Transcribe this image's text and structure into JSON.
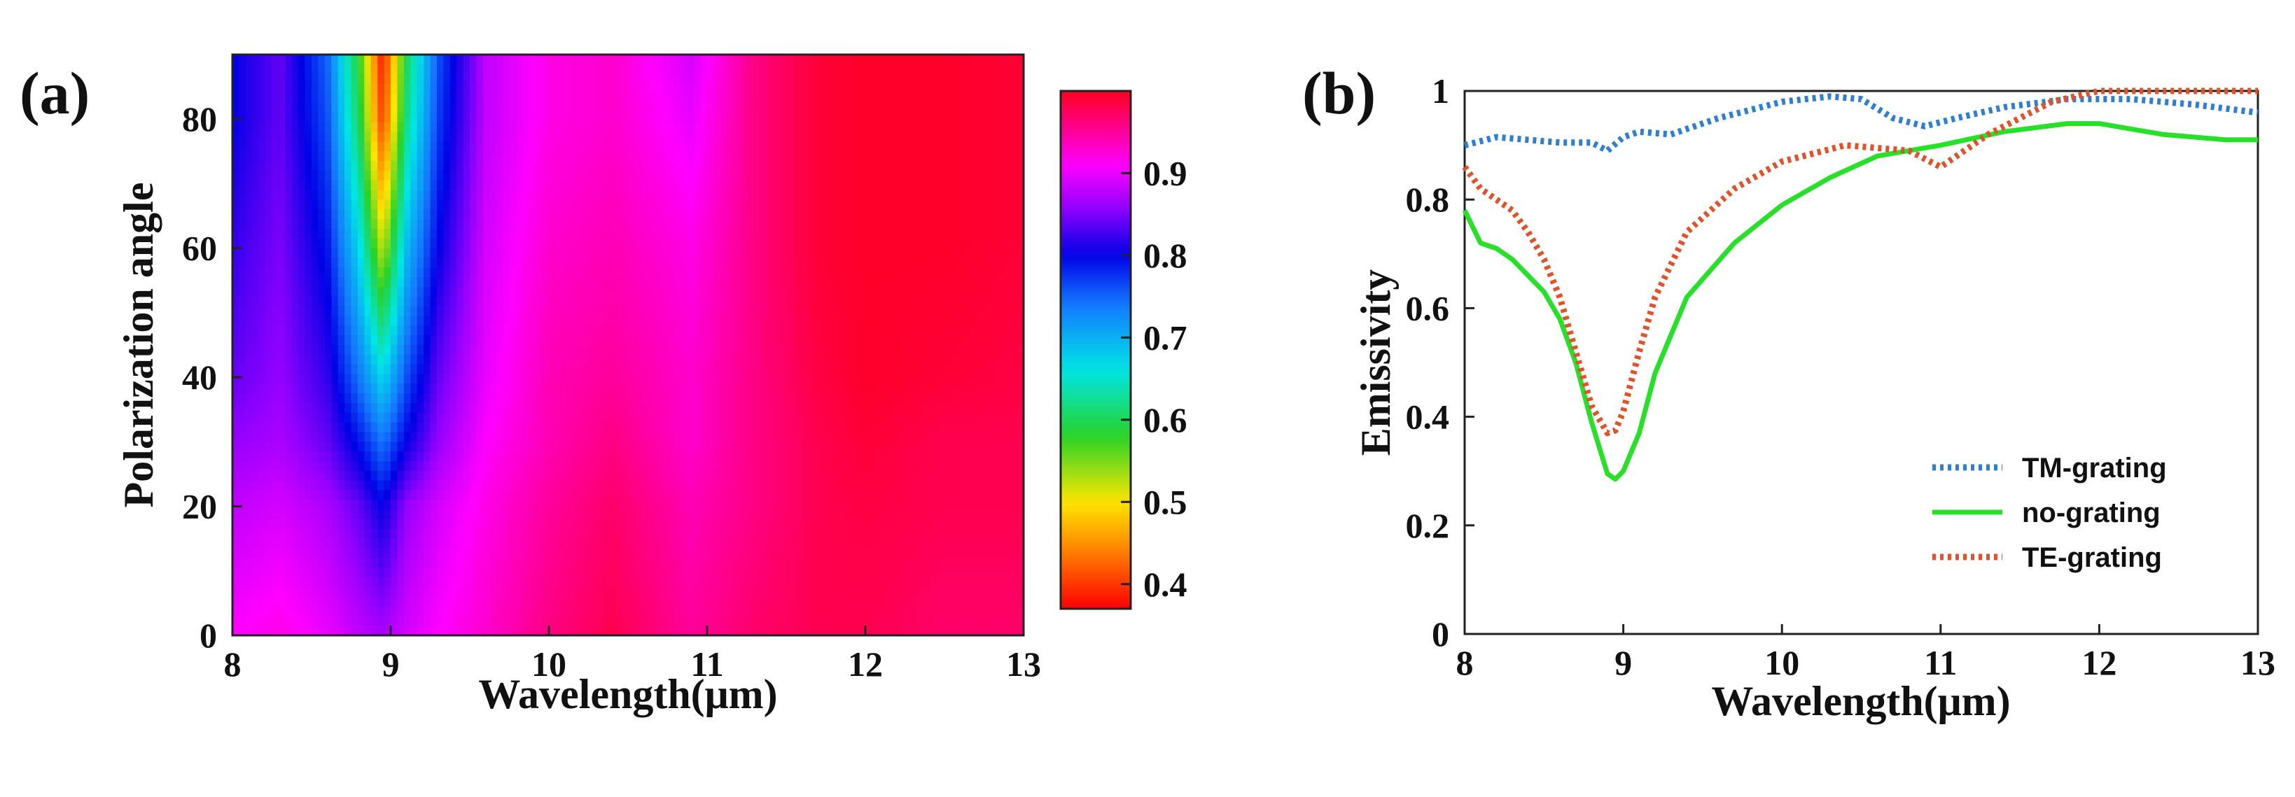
{
  "chart_data": [
    {
      "type": "heatmap",
      "panel_label": "(a)",
      "xlabel": "Wavelength(μm)",
      "ylabel": "Polarization angle",
      "xlim": [
        8,
        13
      ],
      "ylim": [
        0,
        90
      ],
      "xticks": [
        8,
        9,
        10,
        11,
        12,
        13
      ],
      "yticks": [
        0,
        20,
        40,
        60,
        80
      ],
      "colorbar": {
        "min": 0.37,
        "max": 1.0,
        "ticks": [
          0.4,
          0.5,
          0.6,
          0.7,
          0.8,
          0.9
        ]
      },
      "x": [
        8.0,
        8.3,
        8.6,
        8.8,
        8.95,
        9.1,
        9.3,
        9.6,
        10.0,
        10.4,
        10.9,
        11.3,
        11.7,
        12.0,
        12.5,
        13.0
      ],
      "y": [
        0,
        20,
        30,
        40,
        60,
        80,
        90
      ],
      "z": [
        [
          0.91,
          0.92,
          0.9,
          0.88,
          0.87,
          0.89,
          0.91,
          0.93,
          0.96,
          0.98,
          0.95,
          0.97,
          0.98,
          0.98,
          0.97,
          0.97
        ],
        [
          0.88,
          0.89,
          0.87,
          0.84,
          0.8,
          0.86,
          0.89,
          0.92,
          0.95,
          0.97,
          0.94,
          0.96,
          0.98,
          0.985,
          0.98,
          0.98
        ],
        [
          0.86,
          0.87,
          0.84,
          0.79,
          0.74,
          0.8,
          0.86,
          0.91,
          0.94,
          0.96,
          0.93,
          0.96,
          0.98,
          0.99,
          0.98,
          0.98
        ],
        [
          0.84,
          0.86,
          0.82,
          0.74,
          0.67,
          0.76,
          0.84,
          0.9,
          0.94,
          0.95,
          0.93,
          0.96,
          0.985,
          0.995,
          0.99,
          0.985
        ],
        [
          0.82,
          0.85,
          0.79,
          0.67,
          0.52,
          0.69,
          0.8,
          0.89,
          0.93,
          0.94,
          0.92,
          0.96,
          0.99,
          0.995,
          0.995,
          0.99
        ],
        [
          0.8,
          0.84,
          0.76,
          0.6,
          0.4,
          0.62,
          0.77,
          0.88,
          0.92,
          0.93,
          0.9,
          0.96,
          0.99,
          0.995,
          0.995,
          0.99
        ],
        [
          0.8,
          0.84,
          0.75,
          0.58,
          0.38,
          0.6,
          0.76,
          0.88,
          0.92,
          0.93,
          0.89,
          0.96,
          0.99,
          0.995,
          0.995,
          0.99
        ]
      ]
    },
    {
      "type": "line",
      "panel_label": "(b)",
      "xlabel": "Wavelength(μm)",
      "ylabel": "Emissivity",
      "xlim": [
        8,
        13
      ],
      "ylim": [
        0,
        1
      ],
      "xticks": [
        8,
        9,
        10,
        11,
        12,
        13
      ],
      "yticks": [
        0,
        0.2,
        0.4,
        0.6,
        0.8,
        1
      ],
      "legend_position": "bottom-right",
      "series": [
        {
          "name": "TM-grating",
          "color": "#2f7fd0",
          "style": "dotted",
          "x": [
            8.0,
            8.2,
            8.4,
            8.6,
            8.8,
            8.9,
            9.0,
            9.1,
            9.3,
            9.6,
            10.0,
            10.3,
            10.5,
            10.7,
            10.9,
            11.1,
            11.4,
            11.8,
            12.2,
            12.6,
            13.0
          ],
          "y": [
            0.9,
            0.915,
            0.91,
            0.905,
            0.905,
            0.89,
            0.915,
            0.925,
            0.92,
            0.95,
            0.98,
            0.99,
            0.985,
            0.95,
            0.935,
            0.95,
            0.97,
            0.985,
            0.985,
            0.975,
            0.96
          ]
        },
        {
          "name": "no-grating",
          "color": "#28e02a",
          "style": "solid",
          "x": [
            8.0,
            8.1,
            8.2,
            8.3,
            8.4,
            8.5,
            8.6,
            8.7,
            8.8,
            8.9,
            8.95,
            9.0,
            9.1,
            9.2,
            9.4,
            9.7,
            10.0,
            10.3,
            10.6,
            11.0,
            11.4,
            11.8,
            12.0,
            12.4,
            12.8,
            13.0
          ],
          "y": [
            0.78,
            0.72,
            0.71,
            0.69,
            0.66,
            0.63,
            0.58,
            0.5,
            0.39,
            0.295,
            0.285,
            0.3,
            0.37,
            0.48,
            0.62,
            0.72,
            0.79,
            0.84,
            0.88,
            0.9,
            0.925,
            0.94,
            0.94,
            0.92,
            0.91,
            0.91
          ]
        },
        {
          "name": "TE-grating",
          "color": "#e0532a",
          "style": "dotted",
          "x": [
            8.0,
            8.1,
            8.2,
            8.3,
            8.4,
            8.5,
            8.6,
            8.7,
            8.8,
            8.9,
            8.95,
            9.0,
            9.1,
            9.2,
            9.4,
            9.7,
            10.0,
            10.4,
            10.8,
            11.0,
            11.3,
            11.7,
            12.0,
            12.5,
            13.0
          ],
          "y": [
            0.86,
            0.82,
            0.8,
            0.78,
            0.74,
            0.69,
            0.62,
            0.52,
            0.42,
            0.37,
            0.375,
            0.41,
            0.52,
            0.62,
            0.74,
            0.82,
            0.87,
            0.9,
            0.89,
            0.86,
            0.92,
            0.98,
            1.0,
            1.0,
            1.0
          ]
        }
      ]
    }
  ]
}
